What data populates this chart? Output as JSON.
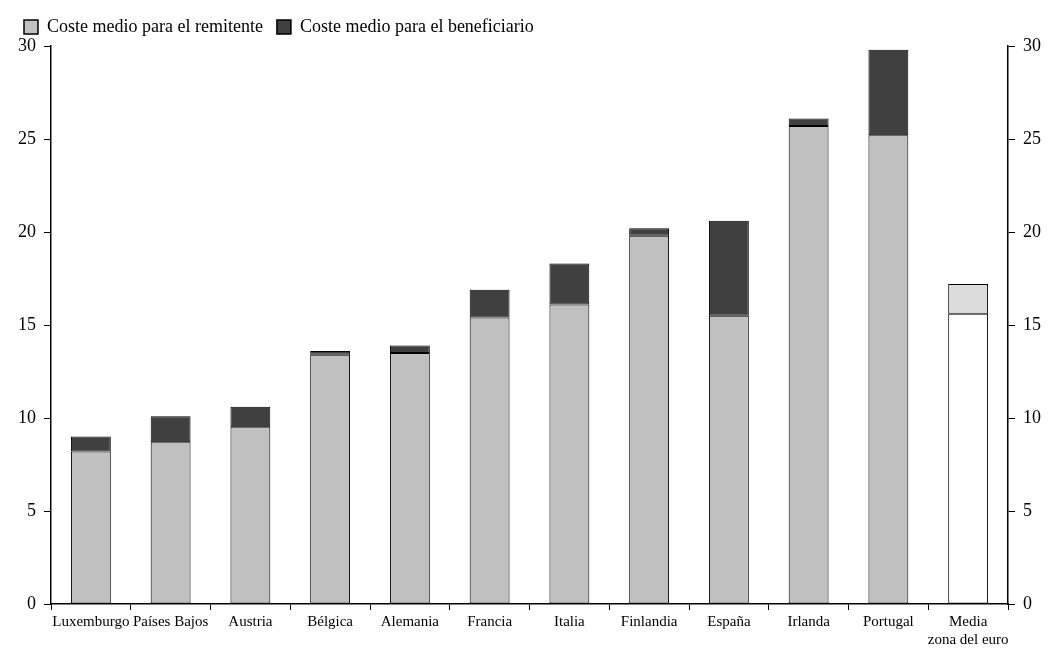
{
  "chart_data": {
    "type": "bar",
    "stacked": true,
    "categories": [
      "Luxemburgo",
      "Países Bajos",
      "Austria",
      "Bélgica",
      "Alemania",
      "Francia",
      "Italia",
      "Finlandia",
      "España",
      "Irlanda",
      "Portugal",
      "Media zona del euro"
    ],
    "series": [
      {
        "name": "Coste medio para el remitente",
        "color": "#c0c0c0",
        "colors": [
          "#c0c0c0",
          "#c0c0c0",
          "#c0c0c0",
          "#c0c0c0",
          "#c0c0c0",
          "#c0c0c0",
          "#c0c0c0",
          "#c0c0c0",
          "#c0c0c0",
          "#c0c0c0",
          "#c0c0c0",
          "#ffffff"
        ],
        "values": [
          8.2,
          8.7,
          9.5,
          13.4,
          13.5,
          15.4,
          16.1,
          19.8,
          15.5,
          25.7,
          25.2,
          15.6
        ]
      },
      {
        "name": "Coste medio para el beneficiario",
        "color": "#404040",
        "colors": [
          "#404040",
          "#404040",
          "#404040",
          "#404040",
          "#404040",
          "#404040",
          "#404040",
          "#404040",
          "#404040",
          "#404040",
          "#404040",
          "#dcdcdc"
        ],
        "values": [
          0.8,
          1.4,
          1.1,
          0.2,
          0.4,
          1.5,
          2.2,
          0.4,
          5.1,
          0.4,
          4.6,
          1.6
        ]
      }
    ],
    "ylim": [
      0,
      30
    ],
    "yticks": [
      0,
      5,
      10,
      15,
      20,
      25,
      30
    ],
    "y2lim": [
      0,
      30
    ],
    "y2ticks": [
      0,
      5,
      10,
      15,
      20,
      25,
      30
    ],
    "grid": false,
    "legend": "top left"
  }
}
